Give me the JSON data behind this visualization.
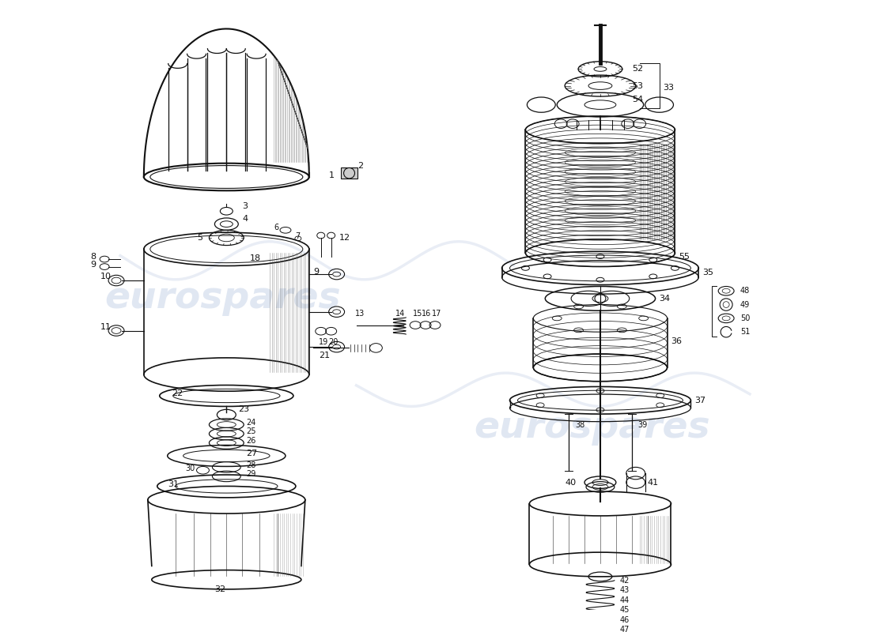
{
  "bg_color": "#ffffff",
  "watermark_text": "eurospares",
  "watermark_color": "#c8d4e8",
  "line_color": "#111111",
  "dark_fill": "#1a1a1a",
  "gray_fill": "#888888",
  "light_gray": "#cccccc"
}
